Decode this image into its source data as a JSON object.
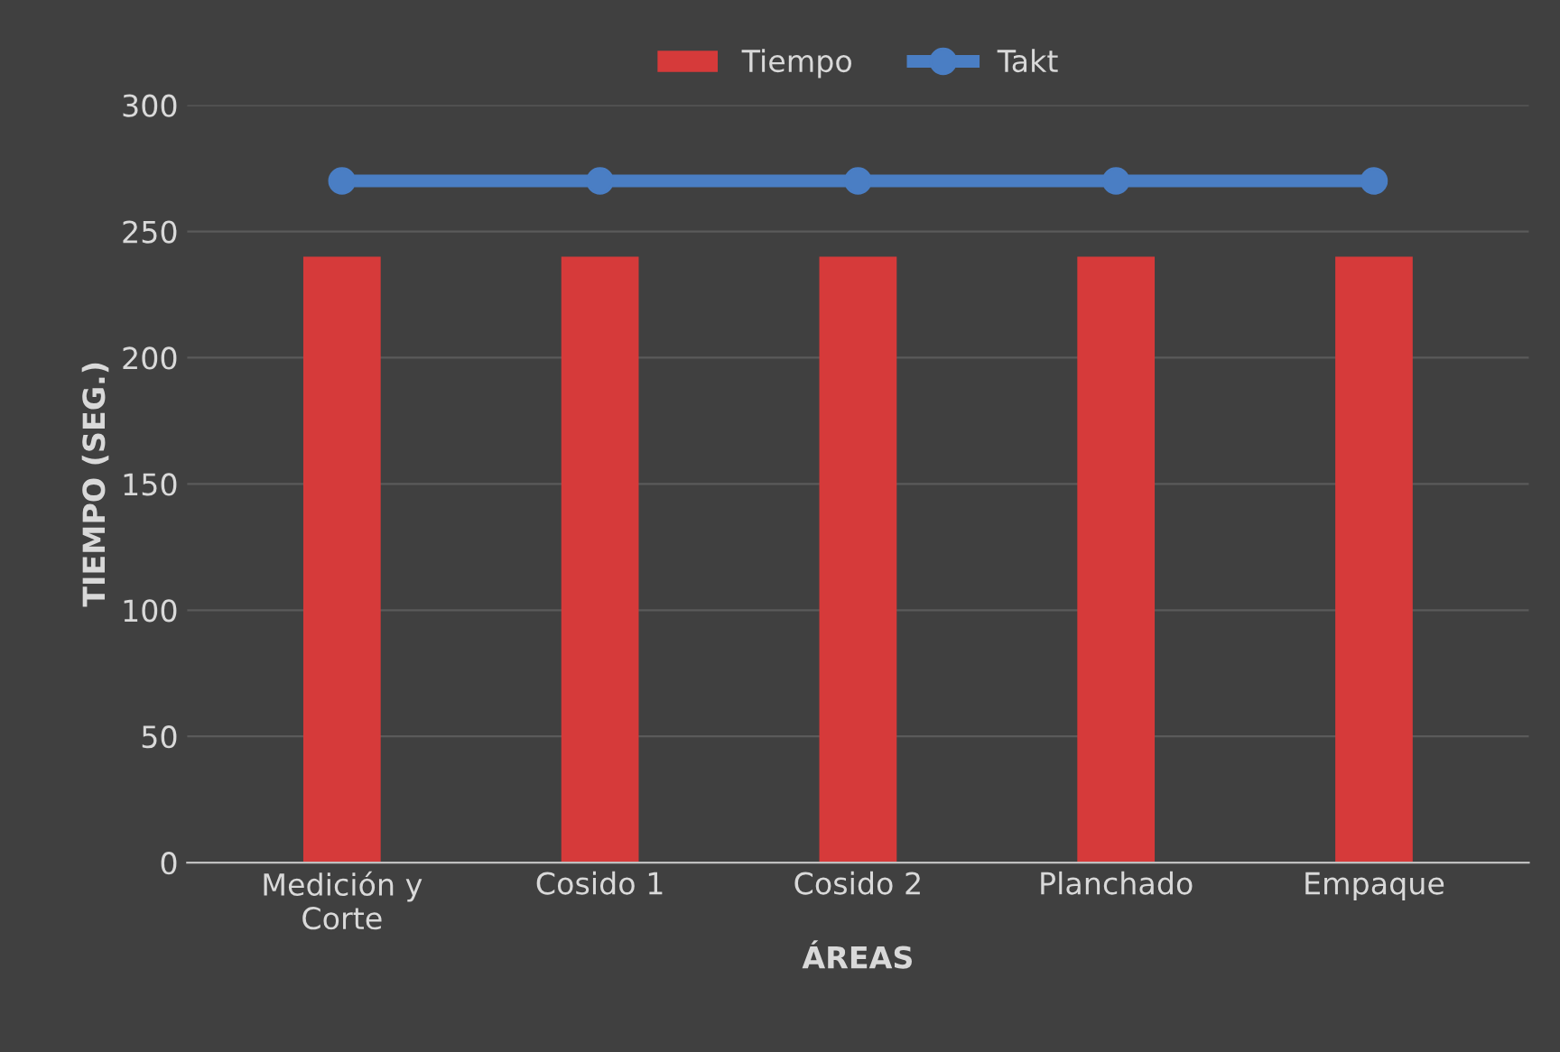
{
  "chart_data": {
    "type": "bar",
    "xlabel": "ÁREAS",
    "ylabel": "TIEMPO (SEG.)",
    "categories": [
      "Medición y\nCorte",
      "Cosido 1",
      "Cosido 2",
      "Planchado",
      "Empaque"
    ],
    "series": [
      {
        "name": "Tiempo",
        "color": "#d63a3a",
        "values": [
          240,
          240,
          240,
          240,
          240
        ]
      },
      {
        "name": "Takt",
        "type": "line",
        "color": "#4a7ec4",
        "values": [
          270,
          270,
          270,
          270,
          270
        ],
        "marker": "circle"
      }
    ],
    "ylim": [
      0,
      300
    ],
    "yticks": [
      0,
      50,
      100,
      150,
      200,
      250,
      300
    ],
    "grid": "y",
    "legend": "top"
  }
}
